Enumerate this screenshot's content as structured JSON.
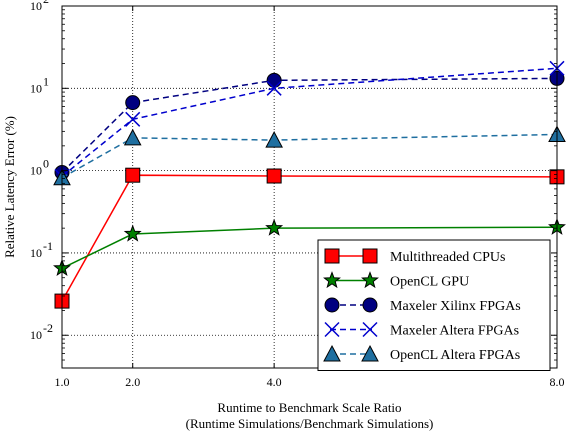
{
  "chart_data": {
    "type": "line",
    "xlabel_line1": "Runtime to Benchmark Scale Ratio",
    "xlabel_line2": "(Runtime Simulations/Benchmark Simulations)",
    "ylabel": "Relative Latency Error (%)",
    "xlim": [
      1.0,
      8.0
    ],
    "ylim": [
      0.004,
      100
    ],
    "yscale": "log",
    "grid": true,
    "legend_placement": "lower-right",
    "x_tick_labels": [
      "1.0",
      "2.0",
      "4.0",
      "8.0"
    ],
    "x_ticks": [
      1.0,
      2.0,
      4.0,
      8.0
    ],
    "y_ticks": [
      {
        "value": 0.01,
        "base": "10",
        "exp": "-2"
      },
      {
        "value": 0.1,
        "base": "10",
        "exp": "-1"
      },
      {
        "value": 1,
        "base": "10",
        "exp": "0"
      },
      {
        "value": 10,
        "base": "10",
        "exp": "1"
      },
      {
        "value": 100,
        "base": "10",
        "exp": "2"
      }
    ],
    "series": [
      {
        "name": "Multithreaded CPUs",
        "color": "#ff0000",
        "dash": "solid",
        "marker": "square",
        "x": [
          1.0,
          2.0,
          4.0,
          8.0
        ],
        "y": [
          0.026,
          0.88,
          0.86,
          0.84
        ]
      },
      {
        "name": "OpenCL GPU",
        "color": "#008000",
        "dash": "solid",
        "marker": "star",
        "x": [
          1.0,
          2.0,
          4.0,
          8.0
        ],
        "y": [
          0.065,
          0.17,
          0.2,
          0.205
        ]
      },
      {
        "name": "Maxeler Xilinx FPGAs",
        "color": "#000080",
        "dash": "dashed",
        "marker": "circle",
        "x": [
          1.0,
          2.0,
          4.0,
          8.0
        ],
        "y": [
          0.95,
          6.7,
          12.5,
          13.2
        ]
      },
      {
        "name": "Maxeler Altera FPGAs",
        "color": "#0000cd",
        "dash": "dashed",
        "marker": "x",
        "x": [
          1.0,
          2.0,
          4.0,
          8.0
        ],
        "y": [
          0.85,
          4.2,
          10.0,
          17.5
        ]
      },
      {
        "name": "OpenCL Altera FPGAs",
        "color": "#1f6fa0",
        "dash": "dashed",
        "marker": "triangle",
        "x": [
          1.0,
          2.0,
          4.0,
          8.0
        ],
        "y": [
          0.82,
          2.5,
          2.35,
          2.75
        ]
      }
    ]
  }
}
